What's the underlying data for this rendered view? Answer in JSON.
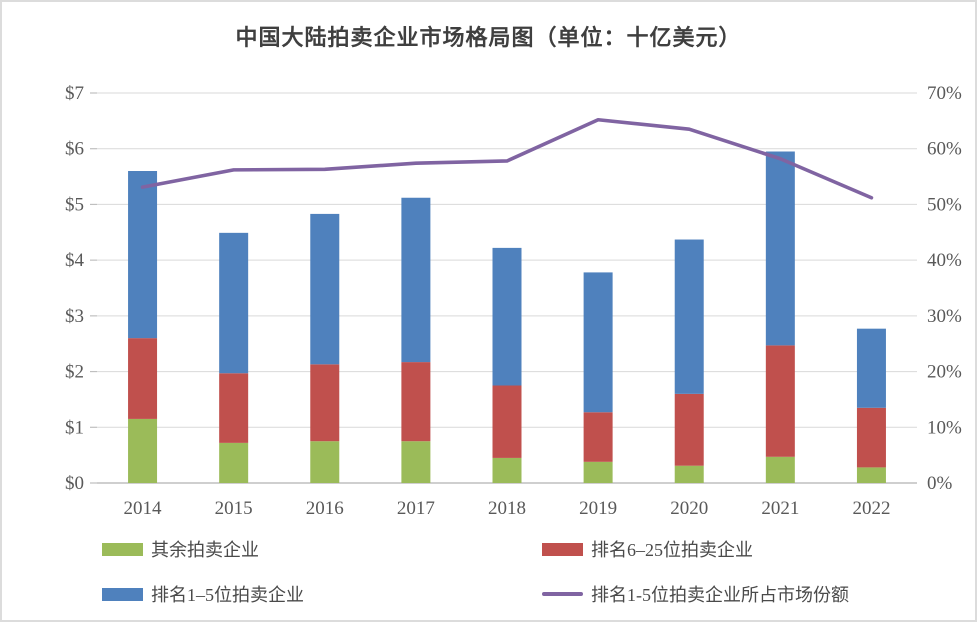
{
  "window": {
    "background": "#ffffff",
    "frame_border_color": "#dcdcdc"
  },
  "chart_data": {
    "type": "bar",
    "subtype": "stacked-bar-with-line",
    "title": "中国大陆拍卖企业市场格局图（单位：十亿美元）",
    "categories": [
      "2014",
      "2015",
      "2016",
      "2017",
      "2018",
      "2019",
      "2020",
      "2021",
      "2022"
    ],
    "series": [
      {
        "name": "其余拍卖企业",
        "render": "bar-stack",
        "color": "#9BBB59",
        "values": [
          1.15,
          0.72,
          0.75,
          0.75,
          0.45,
          0.38,
          0.31,
          0.47,
          0.28
        ]
      },
      {
        "name": "排名6–25位拍卖企业",
        "render": "bar-stack",
        "color": "#C0504D",
        "values": [
          1.45,
          1.25,
          1.38,
          1.42,
          1.3,
          0.89,
          1.29,
          2.0,
          1.07
        ]
      },
      {
        "name": "排名1–5位拍卖企业",
        "render": "bar-stack",
        "color": "#4F81BD",
        "values": [
          3.0,
          2.52,
          2.7,
          2.95,
          2.47,
          2.51,
          2.77,
          3.48,
          1.42
        ]
      },
      {
        "name": "排名1-5位拍卖企业所占市场份额",
        "render": "line",
        "axis": "right",
        "color": "#8064A2",
        "values": [
          53.1,
          56.2,
          56.3,
          57.4,
          57.8,
          65.2,
          63.5,
          58.2,
          51.2
        ]
      }
    ],
    "stacked_totals": [
      5.6,
      4.49,
      4.83,
      5.12,
      4.22,
      3.78,
      4.37,
      5.95,
      2.77
    ],
    "left_axis": {
      "min": 0,
      "max": 7,
      "step": 1,
      "tick_labels": [
        "$0",
        "$1",
        "$2",
        "$3",
        "$4",
        "$5",
        "$6",
        "$7"
      ]
    },
    "right_axis": {
      "min": 0,
      "max": 70,
      "step": 10,
      "tick_labels": [
        "0%",
        "10%",
        "20%",
        "30%",
        "40%",
        "50%",
        "60%",
        "70%"
      ]
    },
    "grid": true,
    "gridline_color": "#d9d9d9",
    "axis_line_color": "#bfbfbf",
    "axis_text_color": "#595959",
    "legend_position": "bottom"
  }
}
